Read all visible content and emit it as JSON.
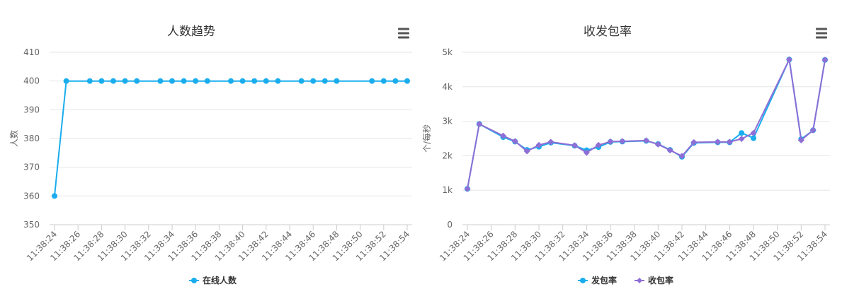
{
  "charts": [
    {
      "menu_icon": "hamburger-menu-icon",
      "chart_data": {
        "type": "line",
        "title": "人数趋势",
        "xlabel": "",
        "ylabel": "人数",
        "ylim": [
          350,
          410
        ],
        "yticks": [
          350,
          360,
          370,
          380,
          390,
          400,
          410
        ],
        "ytick_labels": [
          "350",
          "360",
          "370",
          "380",
          "390",
          "400",
          "410"
        ],
        "x_tick_labels": [
          "11:38:24",
          "11:38:26",
          "11:38:28",
          "11:38:30",
          "11:38:32",
          "11:38:34",
          "11:38:36",
          "11:38:38",
          "11:38:40",
          "11:38:42",
          "11:38:44",
          "11:38:46",
          "11:38:48",
          "11:38:50",
          "11:38:52",
          "11:38:54"
        ],
        "xlim": [
          "11:38:24",
          "11:38:54"
        ],
        "grid": true,
        "legend": "bottom-center",
        "series": [
          {
            "name": "在线人数",
            "color": "#1aadee",
            "marker": "circle",
            "points": [
              [
                "11:38:24",
                360
              ],
              [
                "11:38:25",
                400
              ],
              [
                "11:38:27",
                400
              ],
              [
                "11:38:28",
                400
              ],
              [
                "11:38:29",
                400
              ],
              [
                "11:38:30",
                400
              ],
              [
                "11:38:31",
                400
              ],
              [
                "11:38:33",
                400
              ],
              [
                "11:38:34",
                400
              ],
              [
                "11:38:35",
                400
              ],
              [
                "11:38:36",
                400
              ],
              [
                "11:38:37",
                400
              ],
              [
                "11:38:39",
                400
              ],
              [
                "11:38:40",
                400
              ],
              [
                "11:38:41",
                400
              ],
              [
                "11:38:42",
                400
              ],
              [
                "11:38:43",
                400
              ],
              [
                "11:38:45",
                400
              ],
              [
                "11:38:46",
                400
              ],
              [
                "11:38:47",
                400
              ],
              [
                "11:38:48",
                400
              ],
              [
                "11:38:51",
                400
              ],
              [
                "11:38:52",
                400
              ],
              [
                "11:38:53",
                400
              ],
              [
                "11:38:54",
                400
              ]
            ]
          }
        ]
      }
    },
    {
      "menu_icon": "hamburger-menu-icon",
      "chart_data": {
        "type": "line",
        "title": "收发包率",
        "xlabel": "",
        "ylabel": "个/每秒",
        "ylim": [
          0,
          5000
        ],
        "yticks": [
          0,
          1000,
          2000,
          3000,
          4000,
          5000
        ],
        "ytick_labels": [
          "0",
          "1k",
          "2k",
          "3k",
          "4k",
          "5k"
        ],
        "x_tick_labels": [
          "11:38:24",
          "11:38:26",
          "11:38:28",
          "11:38:30",
          "11:38:32",
          "11:38:34",
          "11:38:36",
          "11:38:38",
          "11:38:40",
          "11:38:42",
          "11:38:44",
          "11:38:46",
          "11:38:48",
          "11:38:50",
          "11:38:52",
          "11:38:54"
        ],
        "xlim": [
          "11:38:24",
          "11:38:54"
        ],
        "grid": true,
        "legend": "bottom-center",
        "series": [
          {
            "name": "发包率",
            "color": "#1aadee",
            "marker": "circle",
            "points": [
              [
                "11:38:24",
                1040
              ],
              [
                "11:38:25",
                2920
              ],
              [
                "11:38:27",
                2540
              ],
              [
                "11:38:28",
                2410
              ],
              [
                "11:38:29",
                2170
              ],
              [
                "11:38:30",
                2260
              ],
              [
                "11:38:31",
                2380
              ],
              [
                "11:38:33",
                2290
              ],
              [
                "11:38:34",
                2160
              ],
              [
                "11:38:35",
                2250
              ],
              [
                "11:38:36",
                2400
              ],
              [
                "11:38:37",
                2410
              ],
              [
                "11:38:39",
                2430
              ],
              [
                "11:38:40",
                2340
              ],
              [
                "11:38:41",
                2170
              ],
              [
                "11:38:42",
                1970
              ],
              [
                "11:38:43",
                2370
              ],
              [
                "11:38:45",
                2390
              ],
              [
                "11:38:46",
                2390
              ],
              [
                "11:38:47",
                2660
              ],
              [
                "11:38:48",
                2510
              ],
              [
                "11:38:51",
                4790
              ],
              [
                "11:38:52",
                2480
              ],
              [
                "11:38:53",
                2740
              ],
              [
                "11:38:54",
                4780
              ]
            ]
          },
          {
            "name": "收包率",
            "color": "#8f6ed5",
            "marker": "diamond",
            "points": [
              [
                "11:38:24",
                1040
              ],
              [
                "11:38:25",
                2920
              ],
              [
                "11:38:27",
                2580
              ],
              [
                "11:38:28",
                2420
              ],
              [
                "11:38:29",
                2130
              ],
              [
                "11:38:30",
                2310
              ],
              [
                "11:38:31",
                2400
              ],
              [
                "11:38:33",
                2300
              ],
              [
                "11:38:34",
                2090
              ],
              [
                "11:38:35",
                2310
              ],
              [
                "11:38:36",
                2410
              ],
              [
                "11:38:37",
                2420
              ],
              [
                "11:38:39",
                2440
              ],
              [
                "11:38:40",
                2330
              ],
              [
                "11:38:41",
                2160
              ],
              [
                "11:38:42",
                1990
              ],
              [
                "11:38:43",
                2390
              ],
              [
                "11:38:45",
                2400
              ],
              [
                "11:38:46",
                2400
              ],
              [
                "11:38:47",
                2490
              ],
              [
                "11:38:48",
                2660
              ],
              [
                "11:38:51",
                4790
              ],
              [
                "11:38:52",
                2450
              ],
              [
                "11:38:53",
                2740
              ],
              [
                "11:38:54",
                4780
              ]
            ]
          }
        ]
      }
    }
  ]
}
